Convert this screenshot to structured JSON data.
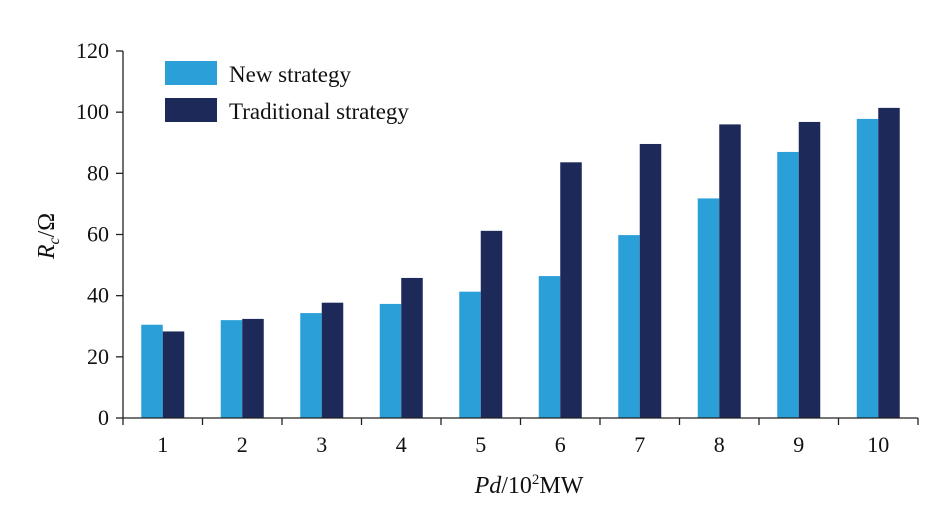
{
  "chart_data": {
    "type": "bar",
    "categories": [
      "1",
      "2",
      "3",
      "4",
      "5",
      "6",
      "7",
      "8",
      "9",
      "10"
    ],
    "series": [
      {
        "name": "New strategy",
        "color": "#2a9fd8",
        "values": [
          30.5,
          32,
          34.3,
          37.3,
          41.3,
          46.4,
          59.8,
          71.8,
          87,
          97.8
        ]
      },
      {
        "name": "Traditional strategy",
        "color": "#1d2958",
        "values": [
          28.3,
          32.4,
          37.7,
          45.8,
          61.2,
          83.6,
          89.6,
          96,
          96.8,
          101.4
        ]
      }
    ],
    "xlabel": {
      "italic": "Pd",
      "rest": "/10",
      "sup": "2",
      "unit": "MW"
    },
    "ylabel": {
      "italic": "R",
      "sub": "c",
      "rest": "/Ω"
    },
    "ylim": [
      0,
      120
    ],
    "yticks": [
      "0",
      "20",
      "40",
      "60",
      "80",
      "100",
      "120"
    ],
    "grid": false,
    "legend_position": "top-left"
  }
}
